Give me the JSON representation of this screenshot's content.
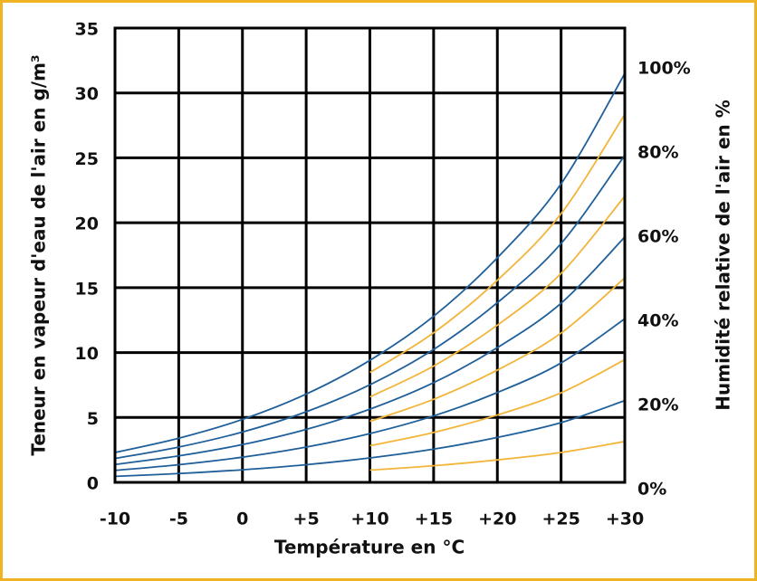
{
  "chart_data": {
    "type": "line",
    "xlabel": "Température en °C",
    "ylabel": "Teneur en vapeur d'eau de l'air en g/m³",
    "y2label": "Humidité relative de l'air en %",
    "xlim": [
      -10,
      30
    ],
    "xticks": [
      -10,
      -5,
      0,
      {
        "value": 5,
        "label": "+5"
      },
      {
        "value": 10,
        "label": "+10"
      },
      {
        "value": 15,
        "label": "+15"
      },
      {
        "value": 20,
        "label": "+20"
      },
      {
        "value": 25,
        "label": "+25"
      },
      {
        "value": 30,
        "label": "+30"
      }
    ],
    "ylim": [
      0,
      35
    ],
    "yticks": [
      0,
      5,
      10,
      15,
      20,
      25,
      30,
      35
    ],
    "y2lim": [
      0,
      108
    ],
    "y2ticks": [
      {
        "value": 0,
        "label": "0%"
      },
      {
        "value": 20,
        "label": "20%"
      },
      {
        "value": 40,
        "label": "40%"
      },
      {
        "value": 60,
        "label": "60%"
      },
      {
        "value": 80,
        "label": "80%"
      },
      {
        "value": 100,
        "label": "100%"
      }
    ],
    "grid": true,
    "series": [
      {
        "color": "#1f5f9a",
        "x": [
          -10,
          -5,
          0,
          5,
          10,
          15,
          20,
          25,
          30
        ],
        "values": [
          2.3,
          3.4,
          4.85,
          6.8,
          9.4,
          12.8,
          17.3,
          23.0,
          31.5
        ]
      },
      {
        "color": "#1f5f9a",
        "x": [
          -10,
          -5,
          0,
          5,
          10,
          15,
          20,
          25,
          30
        ],
        "values": [
          1.84,
          2.72,
          3.88,
          5.44,
          7.52,
          10.24,
          13.84,
          18.4,
          25.2
        ]
      },
      {
        "color": "#1f5f9a",
        "x": [
          -10,
          -5,
          0,
          5,
          10,
          15,
          20,
          25,
          30
        ],
        "values": [
          1.38,
          2.04,
          2.91,
          4.08,
          5.64,
          7.68,
          10.38,
          13.8,
          18.9
        ]
      },
      {
        "color": "#1f5f9a",
        "x": [
          -10,
          -5,
          0,
          5,
          10,
          15,
          20,
          25,
          30
        ],
        "values": [
          0.92,
          1.36,
          1.94,
          2.72,
          3.76,
          5.12,
          6.92,
          9.2,
          12.6
        ]
      },
      {
        "color": "#1f5f9a",
        "x": [
          -10,
          -5,
          0,
          5,
          10,
          15,
          20,
          25,
          30
        ],
        "values": [
          0.46,
          0.68,
          0.97,
          1.36,
          1.88,
          2.56,
          3.46,
          4.6,
          6.3
        ]
      },
      {
        "color": "#f2b53a",
        "x": [
          10,
          15,
          20,
          25,
          30
        ],
        "values": [
          8.46,
          11.52,
          15.57,
          20.7,
          28.35
        ]
      },
      {
        "color": "#f2b53a",
        "x": [
          10,
          15,
          20,
          25,
          30
        ],
        "values": [
          6.58,
          8.96,
          12.11,
          16.1,
          22.05
        ]
      },
      {
        "color": "#f2b53a",
        "x": [
          10,
          15,
          20,
          25,
          30
        ],
        "values": [
          4.7,
          6.4,
          8.65,
          11.5,
          15.75
        ]
      },
      {
        "color": "#f2b53a",
        "x": [
          10,
          15,
          20,
          25,
          30
        ],
        "values": [
          2.82,
          3.84,
          5.19,
          6.9,
          9.45
        ]
      },
      {
        "color": "#f2b53a",
        "x": [
          10,
          15,
          20,
          25,
          30
        ],
        "values": [
          0.94,
          1.28,
          1.73,
          2.3,
          3.15
        ]
      }
    ]
  }
}
